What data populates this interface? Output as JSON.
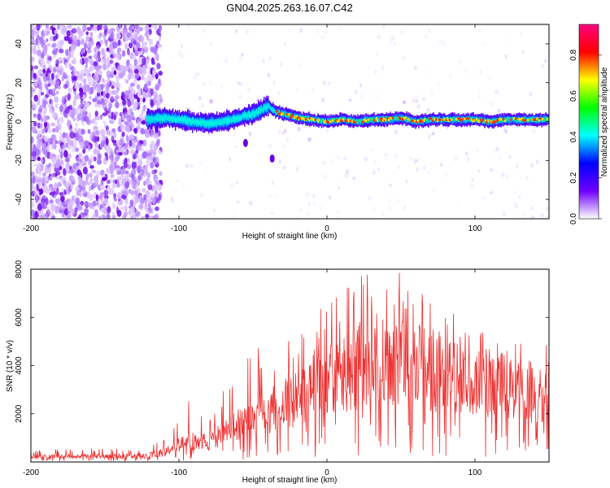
{
  "title": "GN04.2025.263.16.07.C42",
  "chart_data": [
    {
      "type": "heatmap",
      "name": "spectrogram",
      "xlabel": "Height of straight line (km)",
      "ylabel": "Frequency (Hz)",
      "xlim": [
        -200,
        150
      ],
      "ylim": [
        -50,
        50
      ],
      "xticks": [
        -200,
        -100,
        0,
        100
      ],
      "yticks": [
        -40,
        -20,
        0,
        20,
        40
      ],
      "colorbar": {
        "label": "Normalized spectral amplitude",
        "range": [
          0,
          0.95
        ],
        "ticks": [
          "0.0",
          "0.2",
          "0.4",
          "0.6",
          "0.8"
        ],
        "tick_values": [
          0,
          0.2,
          0.4,
          0.6,
          0.8
        ],
        "colors": [
          "#ffffff",
          "#7000ff",
          "#0000ff",
          "#00ffff",
          "#00ff00",
          "#ffff00",
          "#ff0000",
          "#ff0080"
        ]
      },
      "noise_region_km": [
        -200,
        -120
      ],
      "signal_start_km": -122,
      "signal_track": {
        "height_km": [
          -122,
          -110,
          -100,
          -90,
          -80,
          -70,
          -60,
          -50,
          -45,
          -40,
          -35,
          -30,
          -25,
          -20,
          -10,
          0,
          10,
          20,
          30,
          40,
          50,
          60,
          70,
          80,
          90,
          100,
          110,
          120,
          130,
          140,
          150
        ],
        "freq_hz": [
          1,
          2,
          1,
          0,
          -1,
          0,
          2,
          4,
          6,
          8,
          5,
          4,
          3,
          2,
          1,
          0,
          1,
          0,
          1,
          1,
          2,
          0,
          1,
          1,
          1,
          1,
          0,
          1,
          1,
          1,
          1
        ]
      },
      "isolated_blobs": [
        {
          "height_km": -55,
          "freq_hz": -11
        },
        {
          "height_km": -37,
          "freq_hz": -19
        }
      ]
    },
    {
      "type": "line",
      "name": "snr",
      "xlabel": "Height of straight line (km)",
      "ylabel": "SNR (10 * v/v)",
      "xlim": [
        -200,
        150
      ],
      "ylim": [
        0,
        8000
      ],
      "xticks": [
        -200,
        -100,
        0,
        100
      ],
      "yticks": [
        2000,
        4000,
        6000,
        8000
      ],
      "color": "#ee3030",
      "envelope": {
        "height_km": [
          -200,
          -130,
          -120,
          -110,
          -100,
          -90,
          -80,
          -70,
          -60,
          -50,
          -40,
          -30,
          -20,
          -10,
          0,
          10,
          20,
          30,
          40,
          50,
          60,
          70,
          80,
          90,
          100,
          110,
          120,
          130,
          140,
          150
        ],
        "mean_snr": [
          200,
          250,
          280,
          400,
          700,
          900,
          800,
          1200,
          1600,
          1800,
          2100,
          2300,
          2700,
          3200,
          3400,
          3500,
          3900,
          4400,
          4300,
          4100,
          4000,
          3800,
          3700,
          3500,
          3400,
          3300,
          3100,
          3000,
          2900,
          3000
        ],
        "peak_snr": [
          500,
          600,
          650,
          1000,
          2100,
          3000,
          2000,
          3100,
          4000,
          4800,
          4700,
          5000,
          5500,
          6200,
          6500,
          7100,
          8000,
          7900,
          7500,
          8000,
          7600,
          6900,
          6400,
          6000,
          5600,
          5200,
          5100,
          5000,
          5400,
          5200
        ]
      }
    }
  ]
}
